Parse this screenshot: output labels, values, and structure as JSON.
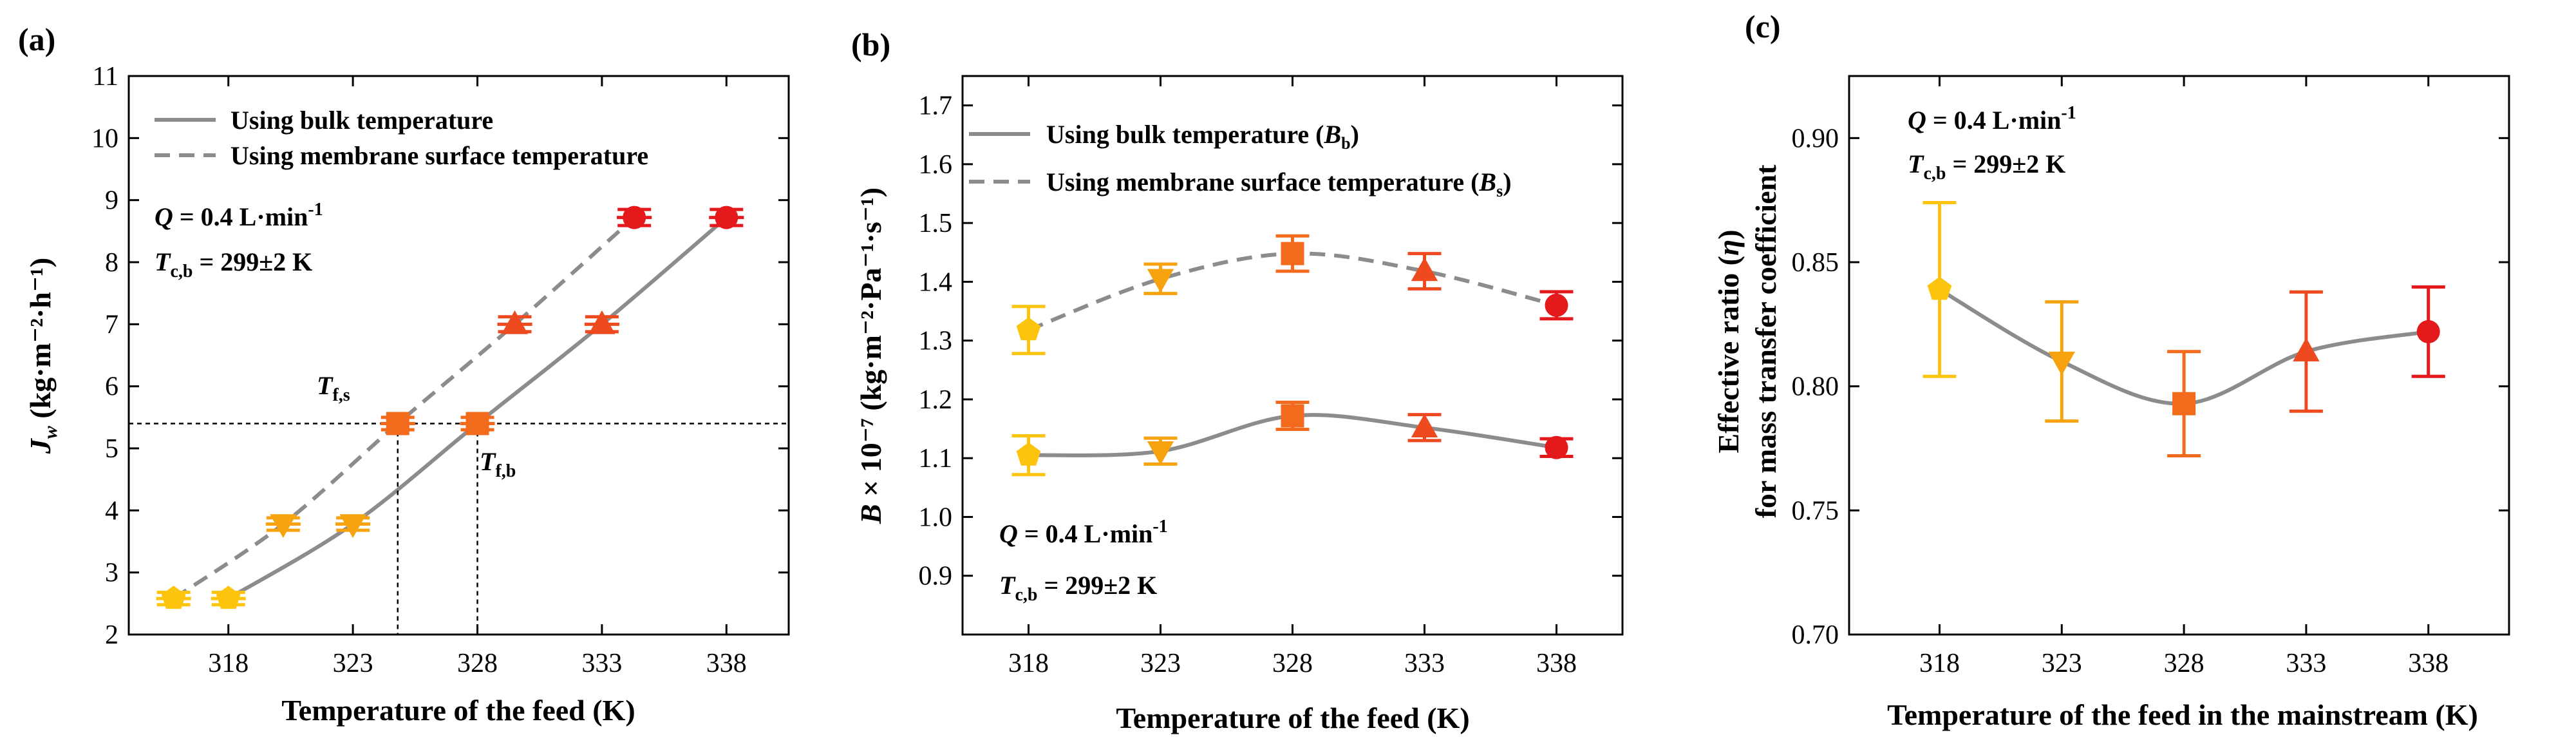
{
  "colors": {
    "fit_line": "#8c8c8c",
    "t318": "#fcc40c",
    "t323": "#f7a20f",
    "t328": "#f26a1c",
    "t333": "#ee4a1f",
    "t338": "#e3191c"
  },
  "chart_data": [
    {
      "panel": "(a)",
      "type": "scatter",
      "xlabel": "Temperature of the feed (K)",
      "ylabel": "J",
      "ylabel_sub": "w",
      "ylabel_unit": " (kg·m⁻²·h⁻¹)",
      "xlim": [
        314,
        340.5
      ],
      "ylim": [
        2,
        11
      ],
      "xticks": [
        318,
        323,
        328,
        333,
        338
      ],
      "yticks": [
        2,
        3,
        4,
        5,
        6,
        7,
        8,
        9,
        10,
        11
      ],
      "legend": [
        {
          "label": "Using bulk temperature",
          "style": "solid"
        },
        {
          "label": "Using membrane surface temperature",
          "style": "dashed"
        }
      ],
      "annotations": [
        {
          "parts": [
            "Q",
            " = 0.4 L·min",
            "-1"
          ]
        },
        {
          "parts": [
            "T",
            "c,b",
            " = 299±2 K"
          ]
        }
      ],
      "markers": [
        {
          "label": "T",
          "sub": "f,s"
        },
        {
          "label": "T",
          "sub": "f,b"
        }
      ],
      "reference": {
        "y": 5.4,
        "x_surface": 324.8,
        "x_bulk": 328.0
      },
      "series": [
        {
          "name": "Using bulk temperature",
          "style": "solid",
          "points": [
            {
              "x": 318.0,
              "y": 2.58,
              "xerr": 0.7,
              "yerr": 0.1,
              "marker": "pentagon",
              "color": "t318"
            },
            {
              "x": 323.0,
              "y": 3.78,
              "xerr": 0.7,
              "yerr": 0.1,
              "marker": "triangle-down",
              "color": "t323"
            },
            {
              "x": 328.0,
              "y": 5.4,
              "xerr": 0.7,
              "yerr": 0.1,
              "marker": "square",
              "color": "t328"
            },
            {
              "x": 333.0,
              "y": 7.0,
              "xerr": 0.7,
              "yerr": 0.12,
              "marker": "triangle-up",
              "color": "t333"
            },
            {
              "x": 338.0,
              "y": 8.72,
              "xerr": 0.7,
              "yerr": 0.13,
              "marker": "circle",
              "color": "t338"
            }
          ]
        },
        {
          "name": "Using membrane surface temperature",
          "style": "dashed",
          "points": [
            {
              "x": 315.8,
              "y": 2.58,
              "xerr": 0.7,
              "yerr": 0.1,
              "marker": "pentagon",
              "color": "t318"
            },
            {
              "x": 320.2,
              "y": 3.78,
              "xerr": 0.7,
              "yerr": 0.1,
              "marker": "triangle-down",
              "color": "t323"
            },
            {
              "x": 324.8,
              "y": 5.4,
              "xerr": 0.7,
              "yerr": 0.1,
              "marker": "square",
              "color": "t328"
            },
            {
              "x": 329.5,
              "y": 7.0,
              "xerr": 0.7,
              "yerr": 0.12,
              "marker": "triangle-up",
              "color": "t333"
            },
            {
              "x": 334.3,
              "y": 8.72,
              "xerr": 0.7,
              "yerr": 0.13,
              "marker": "circle",
              "color": "t338"
            }
          ]
        }
      ]
    },
    {
      "panel": "(b)",
      "type": "scatter",
      "xlabel": "Temperature of the feed (K)",
      "ylabel": "B",
      "ylabel_unit": " × 10⁻⁷ (kg·m⁻²·Pa⁻¹·s⁻¹)",
      "xlim": [
        315.5,
        340.5
      ],
      "ylim": [
        0.8,
        1.75
      ],
      "xticks": [
        318,
        323,
        328,
        333,
        338
      ],
      "yticks": [
        0.9,
        1.0,
        1.1,
        1.2,
        1.3,
        1.4,
        1.5,
        1.6,
        1.7
      ],
      "legend": [
        {
          "label": "Using bulk temperature (",
          "sym": "B",
          "sub": "b",
          "close": ")",
          "style": "solid"
        },
        {
          "label": "Using membrane surface temperature (",
          "sym": "B",
          "sub": "s",
          "close": ")",
          "style": "dashed"
        }
      ],
      "annotations": [
        {
          "parts": [
            "Q",
            " = 0.4 L·min",
            "-1"
          ]
        },
        {
          "parts": [
            "T",
            "c,b",
            " = 299±2 K"
          ]
        }
      ],
      "series": [
        {
          "name": "Using bulk temperature (B_b)",
          "style": "solid",
          "points": [
            {
              "x": 318,
              "y": 1.105,
              "yerr": 0.033,
              "marker": "pentagon",
              "color": "t318"
            },
            {
              "x": 323,
              "y": 1.112,
              "yerr": 0.022,
              "marker": "triangle-down",
              "color": "t323"
            },
            {
              "x": 328,
              "y": 1.172,
              "yerr": 0.023,
              "marker": "square",
              "color": "t328"
            },
            {
              "x": 333,
              "y": 1.152,
              "yerr": 0.022,
              "marker": "triangle-up",
              "color": "t333"
            },
            {
              "x": 338,
              "y": 1.118,
              "yerr": 0.015,
              "marker": "circle",
              "color": "t338"
            }
          ]
        },
        {
          "name": "Using membrane surface temperature (B_s)",
          "style": "dashed",
          "points": [
            {
              "x": 318,
              "y": 1.318,
              "yerr": 0.04,
              "marker": "pentagon",
              "color": "t318"
            },
            {
              "x": 323,
              "y": 1.405,
              "yerr": 0.025,
              "marker": "triangle-down",
              "color": "t323"
            },
            {
              "x": 328,
              "y": 1.448,
              "yerr": 0.03,
              "marker": "square",
              "color": "t328"
            },
            {
              "x": 333,
              "y": 1.418,
              "yerr": 0.03,
              "marker": "triangle-up",
              "color": "t333"
            },
            {
              "x": 338,
              "y": 1.36,
              "yerr": 0.023,
              "marker": "circle",
              "color": "t338"
            }
          ]
        }
      ]
    },
    {
      "panel": "(c)",
      "type": "scatter",
      "xlabel": "Temperature of the feed in the mainstream (K)",
      "ylabel": "Effective ratio (",
      "ylabel_sym": "η",
      "ylabel_close": ")",
      "ylabel2": "for mass transfer coefficient",
      "xlim": [
        314.3,
        341.3
      ],
      "ylim": [
        0.7,
        0.925
      ],
      "xticks": [
        318,
        323,
        328,
        333,
        338
      ],
      "yticks": [
        0.7,
        0.75,
        0.8,
        0.85,
        0.9
      ],
      "annotations": [
        {
          "parts": [
            "Q",
            " = 0.4 L·min",
            "-1"
          ]
        },
        {
          "parts": [
            "T",
            "c,b",
            " = 299±2 K"
          ]
        }
      ],
      "series": [
        {
          "name": "Effective ratio",
          "style": "solid",
          "points": [
            {
              "x": 318,
              "y": 0.839,
              "yerr": 0.035,
              "marker": "pentagon",
              "color": "t318"
            },
            {
              "x": 323,
              "y": 0.81,
              "yerr": 0.024,
              "marker": "triangle-down",
              "color": "t323"
            },
            {
              "x": 328,
              "y": 0.793,
              "yerr": 0.021,
              "marker": "square",
              "color": "t328"
            },
            {
              "x": 333,
              "y": 0.814,
              "yerr": 0.024,
              "marker": "triangle-up",
              "color": "t333"
            },
            {
              "x": 338,
              "y": 0.822,
              "yerr": 0.018,
              "marker": "circle",
              "color": "t338"
            }
          ]
        }
      ]
    }
  ]
}
